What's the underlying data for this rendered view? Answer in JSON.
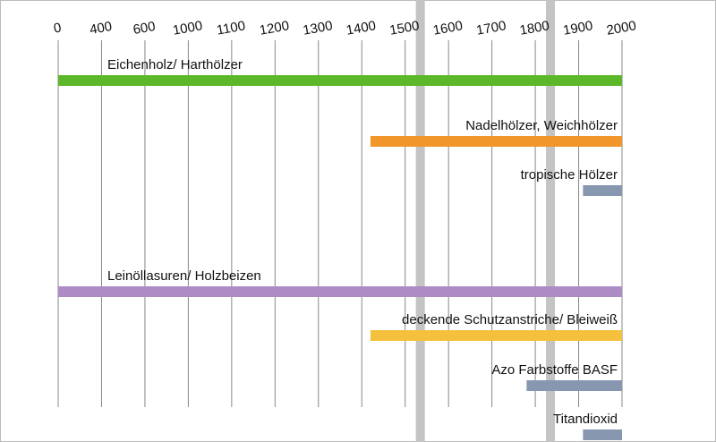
{
  "chart_data": {
    "type": "timeline",
    "xticks": [
      0,
      400,
      600,
      1000,
      1100,
      1200,
      1300,
      1400,
      1500,
      1600,
      1700,
      1800,
      1900,
      2000
    ],
    "bands": [
      1535,
      1835
    ],
    "series": [
      {
        "name": "Eichenholz/ Harthölzer",
        "color": "#5cb82a",
        "values": [
          0,
          2000
        ]
      },
      {
        "name": "Nadelhölzer, Weichhölzer",
        "color": "#f0962a",
        "values": [
          1420,
          2000
        ]
      },
      {
        "name": "tropische Hölzer",
        "color": "#8797b0",
        "values": [
          1910,
          2000
        ]
      },
      {
        "name": "Leinöllasuren/ Holzbeizen",
        "color": "#ad8cc6",
        "values": [
          0,
          2000
        ]
      },
      {
        "name": "deckende Schutzanstriche/ Bleiweiß",
        "color": "#f5c13c",
        "values": [
          1420,
          2000
        ]
      },
      {
        "name": "Azo Farbstoffe BASF",
        "color": "#8797b0",
        "values": [
          1780,
          2000
        ]
      },
      {
        "name": "Titandioxid",
        "color": "#8797b0",
        "values": [
          1910,
          2000
        ]
      }
    ]
  }
}
